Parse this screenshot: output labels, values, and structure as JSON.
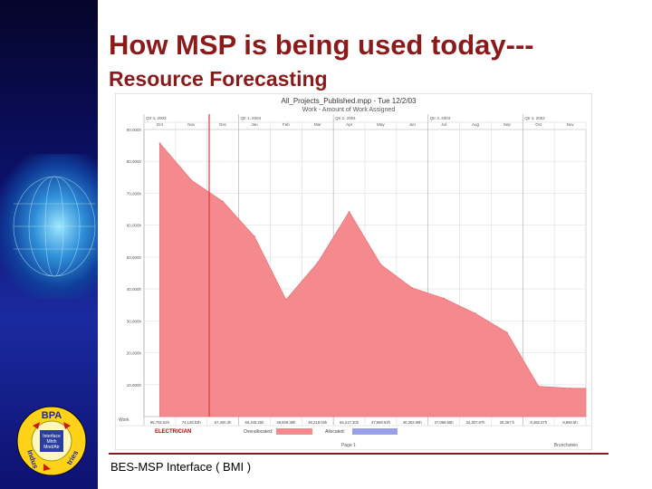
{
  "slide": {
    "title": "How MSP is being used today---",
    "subtitle": "Resource Forecasting",
    "footer": "BES-MSP Interface   ( BMI )"
  },
  "logo": {
    "text_top": "BPA",
    "text_left": "Indus",
    "text_right": "tries",
    "inner_lines": [
      "Interface",
      "Mhth",
      "Mnd/Atr"
    ]
  },
  "colors": {
    "title": "#8b1a1a",
    "overallocated": "#f4898e",
    "allocated": "#9aa0e8",
    "today_line": "#e03a3a"
  },
  "chart_data": {
    "type": "area",
    "title": "All_Projects_Published.mpp - Tue 12/2/03",
    "subtitle": "Work - Amount of Work Assigned",
    "period_labels": [
      {
        "label": "Qtr 4, 2003",
        "at": 0
      },
      {
        "label": "Qtr 1, 2004",
        "at": 3
      },
      {
        "label": "Qtr 2, 2004",
        "at": 6
      },
      {
        "label": "Qtr 3, 2004",
        "at": 9
      },
      {
        "label": "Qtr 4, 2004",
        "at": 12
      }
    ],
    "categories": [
      "Oct",
      "Nov",
      "Dec",
      "Jan",
      "Feb",
      "Mar",
      "Apr",
      "May",
      "Jun",
      "Jul",
      "Aug",
      "Sep",
      "Oct",
      "Nov"
    ],
    "yticks": [
      "90,000h",
      "80,000h",
      "70,000h",
      "60,000h",
      "50,000h",
      "40,000h",
      "30,000h",
      "20,000h",
      "10,000h"
    ],
    "ylim": [
      0,
      90000
    ],
    "series": [
      {
        "name": "Overallocated",
        "values": [
          85702,
          74129,
          67400,
          56445,
          36609,
          48219,
          64217,
          47659,
          40303,
          37058,
          32307,
          26357,
          9482,
          8850
        ]
      }
    ],
    "value_labels": [
      "85,702.02h",
      "74,129.53h",
      "67,400.3h",
      "56,445.25h",
      "36,609.38h",
      "48,219.03h",
      "64,217.30h",
      "47,659.53h",
      "40,303.08h",
      "37,058.65h",
      "32,307.87h",
      "26,357.h",
      "9,482.27h",
      "8,850.5h"
    ],
    "row_header": "Work",
    "resource": "ELECTRICIAN",
    "legend": [
      {
        "name": "Overallocated:"
      },
      {
        "name": "Allocated:"
      }
    ],
    "footer_center": "Page 1",
    "footer_right": "Brunchstein"
  }
}
